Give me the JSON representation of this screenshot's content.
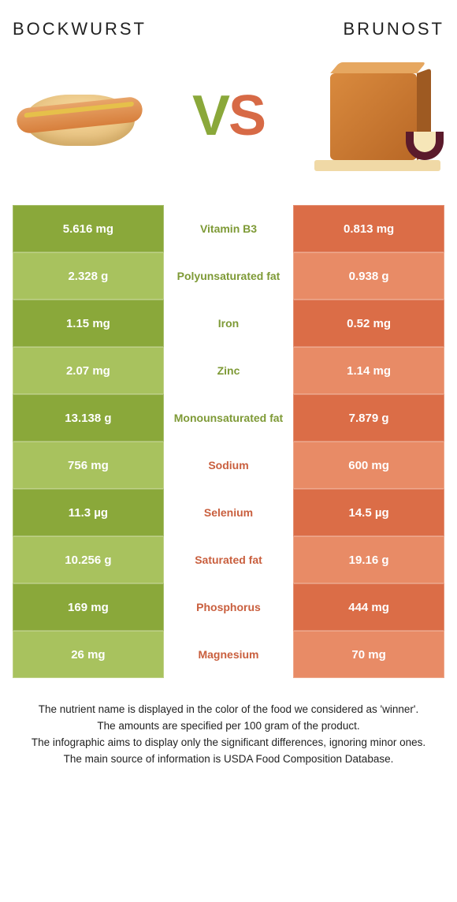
{
  "food_left": {
    "name": "BOCKWURST"
  },
  "food_right": {
    "name": "BRUNOST"
  },
  "vs": {
    "v": "V",
    "s": "S"
  },
  "colors": {
    "left_strong": "#8aa83a",
    "left_light": "#a8c25e",
    "right_strong": "#db6d47",
    "right_light": "#e88b66",
    "mid_left": "#7e9a36",
    "mid_right": "#c95f3e"
  },
  "rows": [
    {
      "left_val": "5.616 mg",
      "label": "Vitamin B3",
      "right_val": "0.813 mg",
      "winner": "left"
    },
    {
      "left_val": "2.328 g",
      "label": "Polyunsaturated fat",
      "right_val": "0.938 g",
      "winner": "left"
    },
    {
      "left_val": "1.15 mg",
      "label": "Iron",
      "right_val": "0.52 mg",
      "winner": "left"
    },
    {
      "left_val": "2.07 mg",
      "label": "Zinc",
      "right_val": "1.14 mg",
      "winner": "left"
    },
    {
      "left_val": "13.138 g",
      "label": "Monounsaturated fat",
      "right_val": "7.879 g",
      "winner": "left"
    },
    {
      "left_val": "756 mg",
      "label": "Sodium",
      "right_val": "600 mg",
      "winner": "right"
    },
    {
      "left_val": "11.3 µg",
      "label": "Selenium",
      "right_val": "14.5 µg",
      "winner": "right"
    },
    {
      "left_val": "10.256 g",
      "label": "Saturated fat",
      "right_val": "19.16 g",
      "winner": "right"
    },
    {
      "left_val": "169 mg",
      "label": "Phosphorus",
      "right_val": "444 mg",
      "winner": "right"
    },
    {
      "left_val": "26 mg",
      "label": "Magnesium",
      "right_val": "70 mg",
      "winner": "right"
    }
  ],
  "footer": {
    "line1": "The nutrient name is displayed in the color of the food we considered as 'winner'.",
    "line2": "The amounts are specified per 100 gram of the product.",
    "line3": "The infographic aims to display only the significant differences, ignoring minor ones.",
    "line4": "The main source of information is USDA Food Composition Database."
  }
}
